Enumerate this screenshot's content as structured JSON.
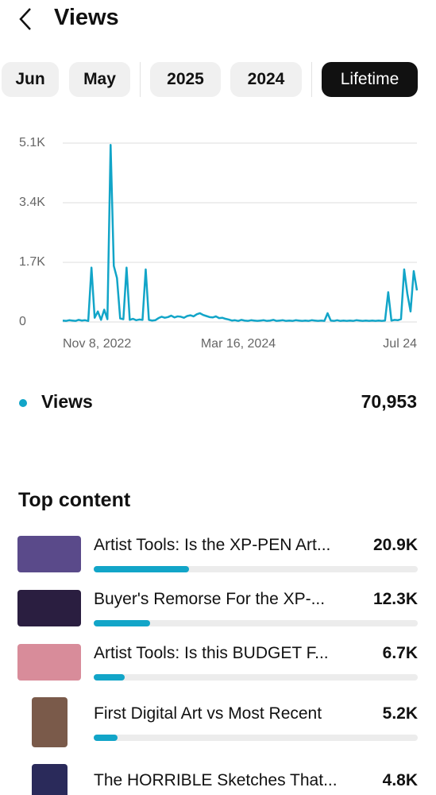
{
  "header": {
    "title": "Views"
  },
  "tabs": [
    "Jun",
    "May",
    "2025",
    "2024",
    "Lifetime"
  ],
  "selected_tab": 4,
  "chart_data": {
    "type": "line",
    "color": "#12a5c8",
    "grid": true,
    "ylim": [
      0,
      5100
    ],
    "yticks": [
      0,
      {
        "value": 1700,
        "label": "1.7K"
      },
      {
        "value": 3400,
        "label": "3.4K"
      },
      {
        "value": 5100,
        "label": "5.1K"
      }
    ],
    "categories": [
      "Nov 8, 2022",
      null,
      null,
      null,
      null,
      null,
      null,
      null,
      null,
      null,
      null,
      null,
      null,
      null,
      null,
      null,
      null,
      null,
      null,
      null,
      null,
      null,
      null,
      null,
      null,
      null,
      null,
      null,
      null,
      null,
      null,
      null,
      null,
      null,
      null,
      null,
      null,
      null,
      null,
      null,
      null,
      null,
      null,
      null,
      null,
      null,
      null,
      null,
      null,
      null,
      null,
      null,
      null,
      null,
      null,
      "Mar 16, 2024",
      null,
      null,
      null,
      null,
      null,
      null,
      null,
      null,
      null,
      null,
      null,
      null,
      null,
      null,
      null,
      null,
      null,
      null,
      null,
      null,
      null,
      null,
      null,
      null,
      null,
      null,
      null,
      null,
      null,
      null,
      null,
      null,
      null,
      null,
      null,
      null,
      null,
      null,
      null,
      null,
      null,
      null,
      null,
      null,
      null,
      null,
      null,
      null,
      null,
      null,
      null,
      null,
      null,
      null,
      null,
      "Jul 24"
    ],
    "values": [
      40,
      30,
      50,
      40,
      30,
      60,
      40,
      50,
      30,
      1550,
      120,
      300,
      60,
      350,
      80,
      5050,
      1600,
      1250,
      100,
      80,
      1550,
      60,
      90,
      50,
      70,
      60,
      1500,
      60,
      40,
      50,
      110,
      150,
      120,
      140,
      180,
      130,
      160,
      150,
      120,
      170,
      190,
      160,
      220,
      250,
      200,
      170,
      140,
      130,
      160,
      110,
      120,
      90,
      70,
      40,
      50,
      30,
      60,
      40,
      30,
      50,
      40,
      30,
      40,
      50,
      30,
      40,
      60,
      30,
      40,
      50,
      30,
      40,
      30,
      50,
      40,
      30,
      40,
      30,
      50,
      40,
      30,
      40,
      30,
      250,
      40,
      30,
      50,
      30,
      40,
      30,
      40,
      30,
      50,
      40,
      30,
      40,
      30,
      40,
      30,
      40,
      30,
      40,
      850,
      40,
      60,
      50,
      80,
      1500,
      800,
      300,
      1450,
      900
    ],
    "legend": {
      "name": "Views",
      "total": 70953,
      "total_label": "70,953"
    }
  },
  "top_content": {
    "title": "Top content",
    "items": [
      {
        "title": "Artist Tools: Is the XP-PEN Art...",
        "views": 20900,
        "views_label": "20.9K"
      },
      {
        "title": "Buyer's Remorse For the XP-...",
        "views": 12300,
        "views_label": "12.3K"
      },
      {
        "title": "Artist Tools: Is this BUDGET F...",
        "views": 6700,
        "views_label": "6.7K"
      },
      {
        "title": "First Digital Art vs Most Recent",
        "views": 5200,
        "views_label": "5.2K"
      },
      {
        "title": "The HORRIBLE Sketches That...",
        "views": 4800,
        "views_label": "4.8K"
      }
    ]
  }
}
